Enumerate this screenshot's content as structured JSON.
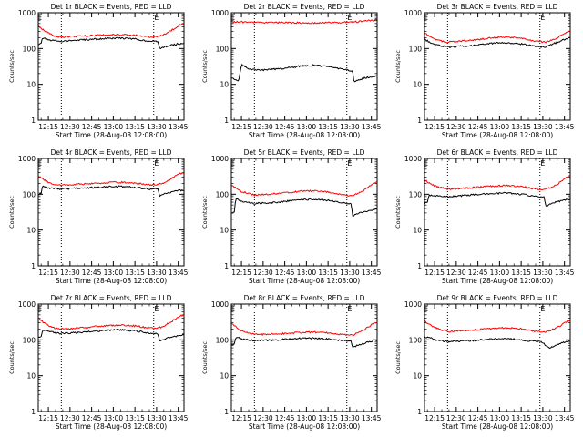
{
  "x_ticks": [
    "12:15",
    "12:30",
    "12:45",
    "13:00",
    "13:15",
    "13:30",
    "13:45"
  ],
  "y_ticks": [
    "1",
    "10",
    "100",
    "1000"
  ],
  "ylabel": "Counts/sec",
  "xlabel": "Start Time (28-Aug-08 12:08:00)",
  "marker": "E",
  "colors": {
    "events": "#000000",
    "lld": "#ff0000",
    "axes": "#000000"
  },
  "chart_data": [
    {
      "type": "line",
      "title": "Det 1r BLACK = Events, RED = LLD",
      "x_range": [
        "12:08:00",
        "13:49:00"
      ],
      "ylim": [
        1,
        1000
      ],
      "yscale": "log",
      "dotted_lines_at": [
        "12:24",
        "13:28"
      ],
      "marker_positions": [
        "12:09",
        "13:30"
      ],
      "series": [
        {
          "name": "Events",
          "color": "#000000",
          "x": [
            "12:08",
            "12:10",
            "12:11",
            "12:15",
            "12:24",
            "12:40",
            "12:55",
            "13:05",
            "13:15",
            "13:25",
            "13:31",
            "13:32",
            "13:35",
            "13:40",
            "13:45",
            "13:48"
          ],
          "y": [
            130,
            135,
            200,
            170,
            160,
            175,
            190,
            195,
            185,
            160,
            158,
            98,
            110,
            125,
            135,
            140
          ]
        },
        {
          "name": "LLD",
          "color": "#ff0000",
          "x": [
            "12:08",
            "12:12",
            "12:18",
            "12:24",
            "12:40",
            "12:55",
            "13:05",
            "13:15",
            "13:25",
            "13:30",
            "13:35",
            "13:40",
            "13:45",
            "13:48"
          ],
          "y": [
            430,
            320,
            230,
            210,
            225,
            240,
            245,
            235,
            215,
            215,
            240,
            320,
            430,
            500
          ]
        }
      ]
    },
    {
      "type": "line",
      "title": "Det 2r BLACK = Events, RED = LLD",
      "x_range": [
        "12:08:00",
        "13:49:00"
      ],
      "ylim": [
        1,
        1000
      ],
      "yscale": "log",
      "dotted_lines_at": [
        "12:24",
        "13:28"
      ],
      "marker_positions": [
        "12:09",
        "13:30"
      ],
      "series": [
        {
          "name": "Events",
          "color": "#000000",
          "x": [
            "12:08",
            "12:12",
            "12:13",
            "12:15",
            "12:20",
            "12:30",
            "12:45",
            "12:55",
            "13:05",
            "13:15",
            "13:25",
            "13:30",
            "13:32",
            "13:33",
            "13:40",
            "13:48"
          ],
          "y": [
            15,
            13,
            12,
            35,
            27,
            25,
            28,
            32,
            34,
            31,
            27,
            24,
            24,
            12,
            15,
            17
          ]
        },
        {
          "name": "LLD",
          "color": "#ff0000",
          "x": [
            "12:08",
            "12:20",
            "12:40",
            "13:00",
            "13:20",
            "13:35",
            "13:48"
          ],
          "y": [
            560,
            540,
            530,
            520,
            530,
            560,
            620
          ]
        }
      ]
    },
    {
      "type": "line",
      "title": "Det 3r BLACK = Events, RED = LLD",
      "x_range": [
        "12:08:00",
        "13:49:00"
      ],
      "ylim": [
        1,
        1000
      ],
      "yscale": "log",
      "dotted_lines_at": [
        "12:24",
        "13:28"
      ],
      "marker_positions": [
        "12:09",
        "13:30"
      ],
      "series": [
        {
          "name": "Events",
          "color": "#000000",
          "x": [
            "12:08",
            "12:15",
            "12:24",
            "12:40",
            "12:55",
            "13:05",
            "13:15",
            "13:25",
            "13:32",
            "13:40",
            "13:48"
          ],
          "y": [
            180,
            130,
            110,
            120,
            140,
            145,
            135,
            115,
            110,
            150,
            200
          ]
        },
        {
          "name": "LLD",
          "color": "#ff0000",
          "x": [
            "12:08",
            "12:15",
            "12:24",
            "12:40",
            "12:55",
            "13:05",
            "13:15",
            "13:25",
            "13:32",
            "13:40",
            "13:48"
          ],
          "y": [
            270,
            180,
            150,
            170,
            200,
            210,
            195,
            160,
            150,
            200,
            300
          ]
        }
      ]
    },
    {
      "type": "line",
      "title": "Det 4r BLACK = Events, RED = LLD",
      "x_range": [
        "12:08:00",
        "13:49:00"
      ],
      "ylim": [
        1,
        1000
      ],
      "yscale": "log",
      "dotted_lines_at": [
        "12:24",
        "13:28"
      ],
      "marker_positions": [
        "12:09",
        "13:30"
      ],
      "series": [
        {
          "name": "Events",
          "color": "#000000",
          "x": [
            "12:08",
            "12:10",
            "12:11",
            "12:15",
            "12:24",
            "12:40",
            "12:55",
            "13:05",
            "13:15",
            "13:25",
            "13:31",
            "13:32",
            "13:35",
            "13:40",
            "13:45",
            "13:48"
          ],
          "y": [
            100,
            105,
            170,
            150,
            140,
            150,
            160,
            165,
            155,
            140,
            138,
            85,
            100,
            115,
            125,
            130
          ]
        },
        {
          "name": "LLD",
          "color": "#ff0000",
          "x": [
            "12:08",
            "12:12",
            "12:18",
            "12:24",
            "12:40",
            "12:55",
            "13:05",
            "13:15",
            "13:25",
            "13:30",
            "13:35",
            "13:40",
            "13:45",
            "13:48"
          ],
          "y": [
            330,
            250,
            190,
            180,
            195,
            210,
            215,
            205,
            185,
            185,
            205,
            270,
            360,
            400
          ]
        }
      ]
    },
    {
      "type": "line",
      "title": "Det 5r BLACK = Events, RED = LLD",
      "x_range": [
        "12:08:00",
        "13:49:00"
      ],
      "ylim": [
        1,
        1000
      ],
      "yscale": "log",
      "dotted_lines_at": [
        "12:24",
        "13:28"
      ],
      "marker_positions": [
        "12:09",
        "13:30"
      ],
      "series": [
        {
          "name": "Events",
          "color": "#000000",
          "x": [
            "12:08",
            "12:10",
            "12:11",
            "12:15",
            "12:24",
            "12:40",
            "12:55",
            "13:05",
            "13:15",
            "13:25",
            "13:31",
            "13:32",
            "13:35",
            "13:40",
            "13:45",
            "13:48"
          ],
          "y": [
            30,
            32,
            75,
            65,
            55,
            60,
            70,
            72,
            68,
            58,
            55,
            25,
            28,
            32,
            36,
            40
          ]
        },
        {
          "name": "LLD",
          "color": "#ff0000",
          "x": [
            "12:08",
            "12:15",
            "12:24",
            "12:40",
            "12:55",
            "13:05",
            "13:15",
            "13:25",
            "13:32",
            "13:40",
            "13:48"
          ],
          "y": [
            180,
            120,
            95,
            105,
            120,
            125,
            115,
            95,
            90,
            130,
            220
          ]
        }
      ]
    },
    {
      "type": "line",
      "title": "Det 6r BLACK = Events, RED = LLD",
      "x_range": [
        "12:08:00",
        "13:49:00"
      ],
      "ylim": [
        1,
        1000
      ],
      "yscale": "log",
      "dotted_lines_at": [
        "12:24",
        "13:28"
      ],
      "marker_positions": [
        "12:09",
        "13:30"
      ],
      "series": [
        {
          "name": "Events",
          "color": "#000000",
          "x": [
            "12:08",
            "12:10",
            "12:11",
            "12:15",
            "12:24",
            "12:40",
            "12:55",
            "13:05",
            "13:15",
            "13:25",
            "13:31",
            "13:32",
            "13:35",
            "13:40",
            "13:45",
            "13:48"
          ],
          "y": [
            55,
            60,
            95,
            90,
            85,
            95,
            105,
            108,
            100,
            88,
            85,
            45,
            55,
            62,
            68,
            72
          ]
        },
        {
          "name": "LLD",
          "color": "#ff0000",
          "x": [
            "12:08",
            "12:15",
            "12:24",
            "12:40",
            "12:55",
            "13:05",
            "13:15",
            "13:25",
            "13:32",
            "13:40",
            "13:48"
          ],
          "y": [
            250,
            170,
            140,
            150,
            170,
            175,
            165,
            140,
            135,
            190,
            330
          ]
        }
      ]
    },
    {
      "type": "line",
      "title": "Det 7r BLACK = Events, RED = LLD",
      "x_range": [
        "12:08:00",
        "13:49:00"
      ],
      "ylim": [
        1,
        1000
      ],
      "yscale": "log",
      "dotted_lines_at": [
        "12:24",
        "13:28"
      ],
      "marker_positions": [
        "12:09",
        "13:30"
      ],
      "series": [
        {
          "name": "Events",
          "color": "#000000",
          "x": [
            "12:08",
            "12:10",
            "12:11",
            "12:15",
            "12:24",
            "12:40",
            "12:55",
            "13:05",
            "13:15",
            "13:25",
            "13:31",
            "13:32",
            "13:35",
            "13:40",
            "13:45",
            "13:48"
          ],
          "y": [
            120,
            125,
            190,
            170,
            150,
            165,
            185,
            190,
            180,
            155,
            150,
            90,
            105,
            120,
            130,
            140
          ]
        },
        {
          "name": "LLD",
          "color": "#ff0000",
          "x": [
            "12:08",
            "12:12",
            "12:18",
            "12:24",
            "12:40",
            "12:55",
            "13:05",
            "13:15",
            "13:25",
            "13:30",
            "13:35",
            "13:40",
            "13:45",
            "13:48"
          ],
          "y": [
            420,
            300,
            220,
            200,
            220,
            250,
            260,
            245,
            215,
            210,
            240,
            320,
            430,
            490
          ]
        }
      ]
    },
    {
      "type": "line",
      "title": "Det 8r BLACK = Events, RED = LLD",
      "x_range": [
        "12:08:00",
        "13:49:00"
      ],
      "ylim": [
        1,
        1000
      ],
      "yscale": "log",
      "dotted_lines_at": [
        "12:24",
        "13:28"
      ],
      "marker_positions": [
        "12:09",
        "13:30"
      ],
      "series": [
        {
          "name": "Events",
          "color": "#000000",
          "x": [
            "12:08",
            "12:10",
            "12:11",
            "12:15",
            "12:24",
            "12:40",
            "12:55",
            "13:05",
            "13:15",
            "13:25",
            "13:31",
            "13:32",
            "13:35",
            "13:40",
            "13:45",
            "13:48"
          ],
          "y": [
            75,
            78,
            120,
            105,
            95,
            100,
            110,
            112,
            105,
            95,
            92,
            60,
            70,
            80,
            90,
            100
          ]
        },
        {
          "name": "LLD",
          "color": "#ff0000",
          "x": [
            "12:08",
            "12:15",
            "12:24",
            "12:40",
            "12:55",
            "13:05",
            "13:15",
            "13:25",
            "13:32",
            "13:40",
            "13:48"
          ],
          "y": [
            280,
            180,
            140,
            145,
            160,
            165,
            155,
            140,
            135,
            190,
            310
          ]
        }
      ]
    },
    {
      "type": "line",
      "title": "Det 9r BLACK = Events, RED = LLD",
      "x_range": [
        "12:08:00",
        "13:49:00"
      ],
      "ylim": [
        1,
        1000
      ],
      "yscale": "log",
      "dotted_lines_at": [
        "12:24",
        "13:28"
      ],
      "marker_positions": [
        "12:09",
        "13:30"
      ],
      "series": [
        {
          "name": "Events",
          "color": "#000000",
          "x": [
            "12:08",
            "12:12",
            "12:15",
            "12:24",
            "12:40",
            "12:55",
            "13:05",
            "13:15",
            "13:25",
            "13:30",
            "13:32",
            "13:35",
            "13:40",
            "13:45",
            "13:48"
          ],
          "y": [
            120,
            115,
            100,
            90,
            95,
            105,
            110,
            100,
            90,
            85,
            70,
            60,
            75,
            85,
            95
          ]
        },
        {
          "name": "LLD",
          "color": "#ff0000",
          "x": [
            "12:08",
            "12:15",
            "12:24",
            "12:40",
            "12:55",
            "13:05",
            "13:15",
            "13:25",
            "13:32",
            "13:40",
            "13:48"
          ],
          "y": [
            330,
            220,
            170,
            185,
            210,
            220,
            205,
            175,
            165,
            220,
            350
          ]
        }
      ]
    }
  ]
}
